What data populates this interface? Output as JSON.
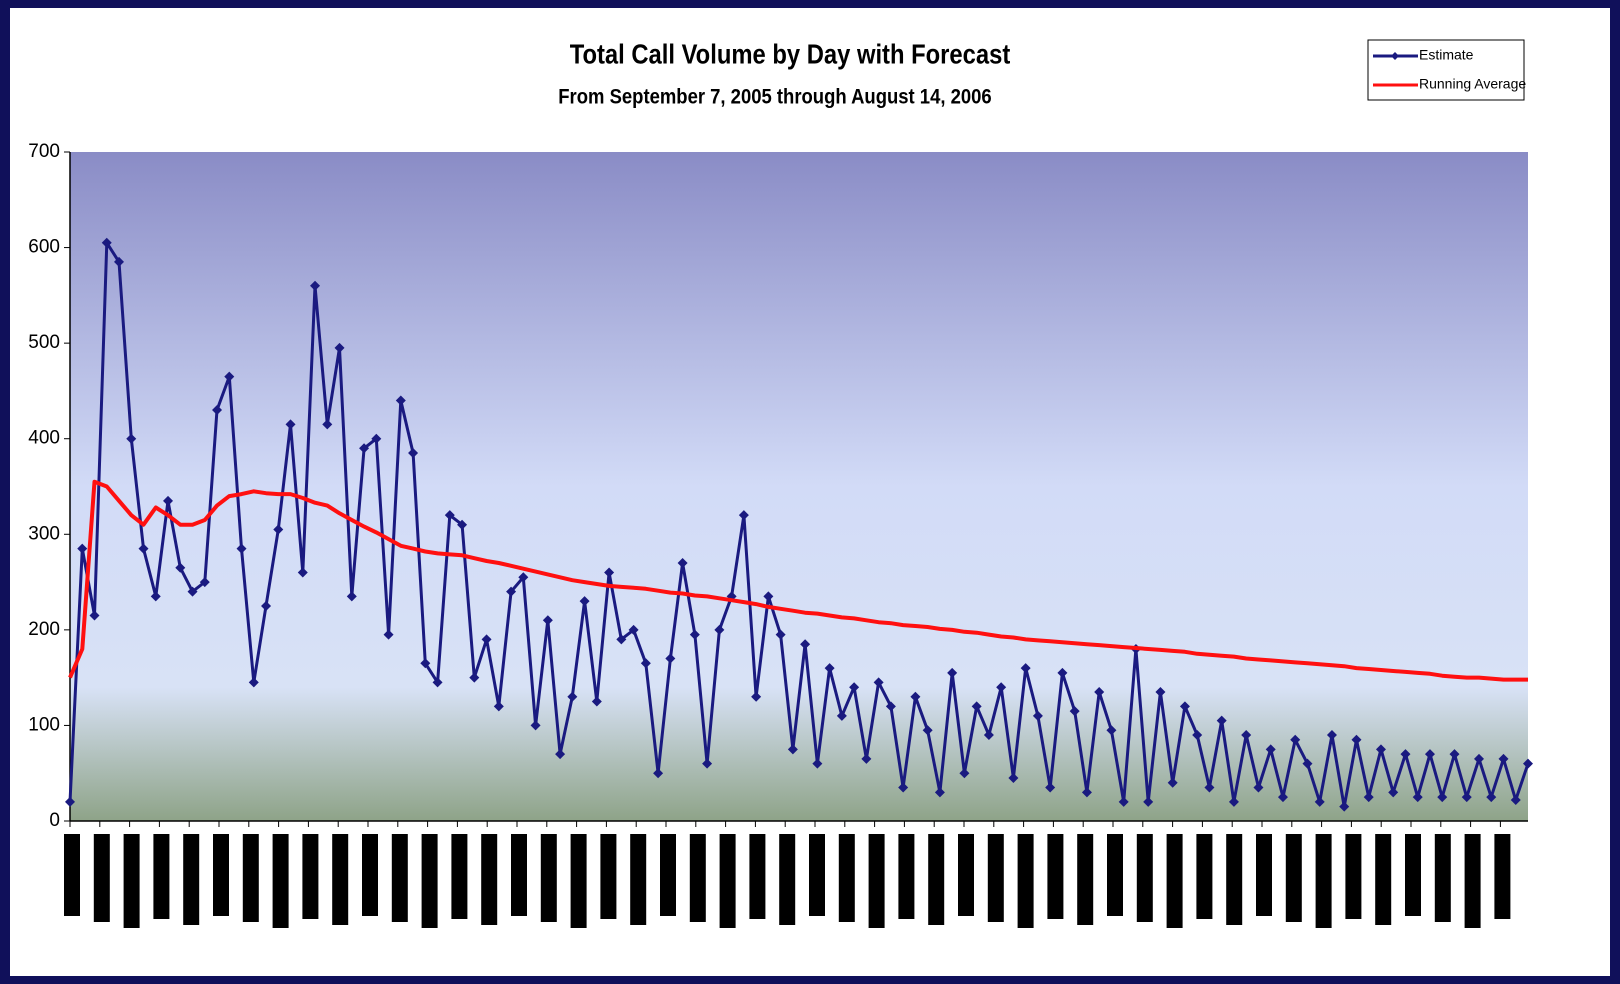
{
  "chart_data": {
    "type": "line",
    "title": "Total Call Volume by Day with Forecast",
    "subtitle": "From September 7, 2005 through August 14, 2006",
    "categories": [
      null,
      null,
      null,
      null,
      null,
      null,
      null,
      null,
      null,
      null,
      null,
      null,
      null,
      null,
      null,
      null,
      null,
      null,
      null,
      null,
      null,
      null,
      null,
      null,
      null,
      null,
      null,
      null,
      null,
      null,
      null,
      null,
      null,
      null,
      null,
      null,
      null,
      null,
      null,
      null,
      null,
      null,
      null,
      null,
      null,
      null,
      null,
      null,
      null,
      null,
      null,
      null,
      null,
      null,
      null,
      null,
      null,
      null,
      null,
      null,
      null,
      null,
      null,
      null,
      null,
      null,
      null,
      null,
      null,
      null,
      null,
      null,
      null,
      null,
      null,
      null,
      null,
      null,
      null,
      null,
      null,
      null,
      null,
      null,
      null,
      null,
      null,
      null,
      null,
      null,
      null,
      null,
      null,
      null,
      null,
      null,
      null,
      null,
      null,
      null,
      null,
      null,
      null,
      null,
      null,
      null,
      null,
      null,
      null,
      null,
      null,
      null,
      null,
      null,
      null,
      null,
      null,
      null,
      null,
      null
    ],
    "series": [
      {
        "name": "Estimate",
        "color": "#1a1a80",
        "marker": "diamond",
        "values": [
          20,
          285,
          215,
          605,
          585,
          400,
          285,
          235,
          335,
          265,
          240,
          250,
          430,
          465,
          285,
          145,
          225,
          305,
          415,
          260,
          560,
          415,
          495,
          235,
          390,
          400,
          195,
          440,
          385,
          165,
          145,
          320,
          310,
          150,
          190,
          120,
          240,
          255,
          100,
          210,
          70,
          130,
          230,
          125,
          260,
          190,
          200,
          165,
          50,
          170,
          270,
          195,
          60,
          200,
          235,
          320,
          130,
          235,
          195,
          75,
          185,
          60,
          160,
          110,
          140,
          65,
          145,
          120,
          35,
          130,
          95,
          30,
          155,
          50,
          120,
          90,
          140,
          45,
          160,
          110,
          35,
          155,
          115,
          30,
          135,
          95,
          20,
          180,
          20,
          135,
          40,
          120,
          90,
          35,
          105,
          20,
          90,
          35,
          75,
          25,
          85,
          60,
          20,
          90,
          15,
          85,
          25,
          75,
          30,
          70,
          25,
          70,
          25,
          70,
          25,
          65,
          25,
          65,
          22,
          60
        ]
      },
      {
        "name": "Running Average",
        "color": "#ff1010",
        "marker": "none",
        "values": [
          150,
          180,
          355,
          350,
          335,
          320,
          310,
          328,
          320,
          310,
          310,
          315,
          330,
          340,
          342,
          345,
          343,
          342,
          342,
          338,
          333,
          330,
          322,
          315,
          308,
          302,
          295,
          288,
          285,
          282,
          280,
          279,
          278,
          275,
          272,
          270,
          267,
          264,
          261,
          258,
          255,
          252,
          250,
          248,
          246,
          245,
          244,
          243,
          241,
          239,
          238,
          236,
          235,
          233,
          231,
          229,
          227,
          224,
          222,
          220,
          218,
          217,
          215,
          213,
          212,
          210,
          208,
          207,
          205,
          204,
          203,
          201,
          200,
          198,
          197,
          195,
          193,
          192,
          190,
          189,
          188,
          187,
          186,
          185,
          184,
          183,
          182,
          181,
          180,
          179,
          178,
          177,
          175,
          174,
          173,
          172,
          170,
          169,
          168,
          167,
          166,
          165,
          164,
          163,
          162,
          160,
          159,
          158,
          157,
          156,
          155,
          154,
          152,
          151,
          150,
          150,
          149,
          148,
          148,
          148
        ]
      }
    ],
    "ylim": [
      0,
      700
    ],
    "yticks": [
      0,
      100,
      200,
      300,
      400,
      500,
      600,
      700
    ],
    "legend": "upper right"
  }
}
